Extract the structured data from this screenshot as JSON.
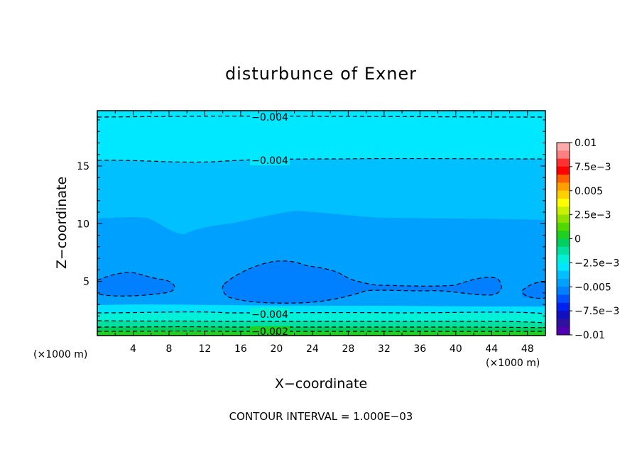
{
  "chart_data": {
    "type": "heatmap",
    "title": "disturbunce of Exner",
    "xlabel": "X−coordinate",
    "ylabel": "Z−coordinate",
    "x_unit_left": "(×1000 m)",
    "x_unit_right": "(×1000 m)",
    "xlim": [
      0,
      50
    ],
    "ylim": [
      0.3,
      19.8
    ],
    "x_ticks": [
      "4",
      "8",
      "12",
      "16",
      "20",
      "24",
      "28",
      "32",
      "36",
      "40",
      "44",
      "48"
    ],
    "y_ticks": [
      "5",
      "10",
      "15"
    ],
    "footer": "CONTOUR INTERVAL = 1.000E−03",
    "colorbar": {
      "labels": [
        "0.01",
        "7.5e−3",
        "0.005",
        "2.5e−3",
        "0",
        "−2.5e−3",
        "−0.005",
        "−7.5e−3",
        "−0.01"
      ],
      "colors": [
        "#ffaaaa",
        "#ff8080",
        "#ff3030",
        "#ff0000",
        "#ff6000",
        "#ffa000",
        "#ffd000",
        "#ffff00",
        "#c8f000",
        "#90e000",
        "#50d800",
        "#20d020",
        "#00d060",
        "#00e0a0",
        "#00f0d8",
        "#00e8ff",
        "#00c0ff",
        "#00a0ff",
        "#0080ff",
        "#0050ff",
        "#0020f0",
        "#1010c0",
        "#3010a0",
        "#5000b0"
      ]
    },
    "contour_labels": [
      "−0.004",
      "−0.004",
      "−0.004",
      "−0.002"
    ],
    "field_bands": [
      {
        "level": "<= -0.0045",
        "color": "#00e8ff"
      },
      {
        "level": "-0.0045 .. -0.005",
        "color": "#00c0ff"
      },
      {
        "level": "-0.005 .. -0.0055",
        "color": "#00a0ff"
      },
      {
        "level": "<= -0.0055",
        "color": "#0080ff"
      },
      {
        "level": "-0.003 .. -0.0035",
        "color": "#00f0d8"
      },
      {
        "level": "-0.0025 .. -0.003",
        "color": "#00e0a0"
      },
      {
        "level": "-0.002 .. -0.0025",
        "color": "#00d060"
      },
      {
        "level": ">= -0.002",
        "color": "#20d020"
      }
    ]
  }
}
